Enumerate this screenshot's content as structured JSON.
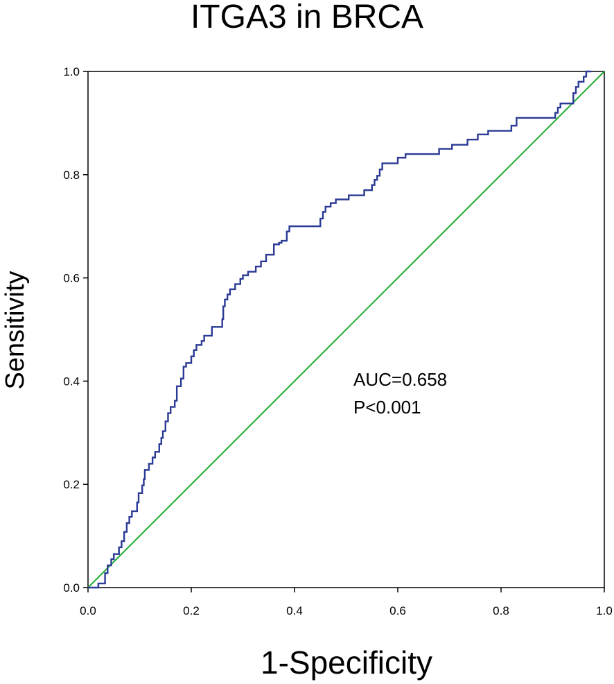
{
  "chart_data": {
    "type": "line",
    "title": "ITGA3 in BRCA",
    "xlabel": "1-Specificity",
    "ylabel": "Sensitivity",
    "xlim": [
      0,
      1
    ],
    "ylim": [
      0,
      1
    ],
    "x_ticks": [
      "0.0",
      "0.2",
      "0.4",
      "0.6",
      "0.8",
      "1.0"
    ],
    "y_ticks": [
      "0.0",
      "0.2",
      "0.4",
      "0.6",
      "0.8",
      "1.0"
    ],
    "grid": false,
    "annotations": [
      "AUC=0.658",
      "P<0.001"
    ],
    "colors": {
      "roc": "#2b3a94",
      "reference": "#22aa33"
    },
    "series": [
      {
        "points": [
          [
            0.0,
            0.0
          ],
          [
            0.02,
            0.0
          ],
          [
            0.02,
            0.008
          ],
          [
            0.033,
            0.008
          ],
          [
            0.033,
            0.028
          ],
          [
            0.038,
            0.028
          ],
          [
            0.038,
            0.043
          ],
          [
            0.045,
            0.043
          ],
          [
            0.045,
            0.055
          ],
          [
            0.05,
            0.055
          ],
          [
            0.05,
            0.065
          ],
          [
            0.06,
            0.065
          ],
          [
            0.06,
            0.078
          ],
          [
            0.065,
            0.078
          ],
          [
            0.065,
            0.09
          ],
          [
            0.07,
            0.09
          ],
          [
            0.07,
            0.108
          ],
          [
            0.075,
            0.108
          ],
          [
            0.075,
            0.125
          ],
          [
            0.08,
            0.125
          ],
          [
            0.08,
            0.137
          ],
          [
            0.085,
            0.137
          ],
          [
            0.085,
            0.148
          ],
          [
            0.095,
            0.148
          ],
          [
            0.095,
            0.165
          ],
          [
            0.098,
            0.165
          ],
          [
            0.098,
            0.183
          ],
          [
            0.105,
            0.183
          ],
          [
            0.105,
            0.198
          ],
          [
            0.108,
            0.198
          ],
          [
            0.108,
            0.21
          ],
          [
            0.11,
            0.21
          ],
          [
            0.11,
            0.228
          ],
          [
            0.118,
            0.228
          ],
          [
            0.118,
            0.24
          ],
          [
            0.125,
            0.24
          ],
          [
            0.125,
            0.252
          ],
          [
            0.13,
            0.252
          ],
          [
            0.13,
            0.263
          ],
          [
            0.138,
            0.263
          ],
          [
            0.138,
            0.278
          ],
          [
            0.142,
            0.278
          ],
          [
            0.142,
            0.29
          ],
          [
            0.145,
            0.29
          ],
          [
            0.145,
            0.303
          ],
          [
            0.15,
            0.303
          ],
          [
            0.15,
            0.322
          ],
          [
            0.155,
            0.322
          ],
          [
            0.155,
            0.338
          ],
          [
            0.16,
            0.338
          ],
          [
            0.16,
            0.35
          ],
          [
            0.168,
            0.35
          ],
          [
            0.168,
            0.362
          ],
          [
            0.172,
            0.362
          ],
          [
            0.172,
            0.39
          ],
          [
            0.18,
            0.39
          ],
          [
            0.18,
            0.405
          ],
          [
            0.185,
            0.405
          ],
          [
            0.185,
            0.428
          ],
          [
            0.19,
            0.428
          ],
          [
            0.19,
            0.435
          ],
          [
            0.2,
            0.435
          ],
          [
            0.2,
            0.448
          ],
          [
            0.205,
            0.448
          ],
          [
            0.205,
            0.46
          ],
          [
            0.21,
            0.46
          ],
          [
            0.21,
            0.47
          ],
          [
            0.22,
            0.47
          ],
          [
            0.22,
            0.478
          ],
          [
            0.225,
            0.478
          ],
          [
            0.225,
            0.488
          ],
          [
            0.24,
            0.488
          ],
          [
            0.24,
            0.505
          ],
          [
            0.26,
            0.505
          ],
          [
            0.26,
            0.52
          ],
          [
            0.262,
            0.52
          ],
          [
            0.262,
            0.545
          ],
          [
            0.265,
            0.545
          ],
          [
            0.265,
            0.558
          ],
          [
            0.27,
            0.558
          ],
          [
            0.27,
            0.568
          ],
          [
            0.275,
            0.568
          ],
          [
            0.275,
            0.578
          ],
          [
            0.285,
            0.578
          ],
          [
            0.285,
            0.588
          ],
          [
            0.295,
            0.588
          ],
          [
            0.295,
            0.598
          ],
          [
            0.3,
            0.598
          ],
          [
            0.3,
            0.605
          ],
          [
            0.31,
            0.605
          ],
          [
            0.31,
            0.612
          ],
          [
            0.325,
            0.612
          ],
          [
            0.325,
            0.622
          ],
          [
            0.335,
            0.622
          ],
          [
            0.335,
            0.632
          ],
          [
            0.345,
            0.632
          ],
          [
            0.345,
            0.645
          ],
          [
            0.36,
            0.645
          ],
          [
            0.36,
            0.665
          ],
          [
            0.37,
            0.665
          ],
          [
            0.37,
            0.668
          ],
          [
            0.375,
            0.668
          ],
          [
            0.375,
            0.672
          ],
          [
            0.385,
            0.672
          ],
          [
            0.385,
            0.69
          ],
          [
            0.39,
            0.69
          ],
          [
            0.39,
            0.7
          ],
          [
            0.4,
            0.7
          ],
          [
            0.45,
            0.7
          ],
          [
            0.45,
            0.715
          ],
          [
            0.455,
            0.715
          ],
          [
            0.455,
            0.728
          ],
          [
            0.46,
            0.728
          ],
          [
            0.46,
            0.738
          ],
          [
            0.47,
            0.738
          ],
          [
            0.47,
            0.745
          ],
          [
            0.48,
            0.745
          ],
          [
            0.48,
            0.752
          ],
          [
            0.505,
            0.752
          ],
          [
            0.505,
            0.76
          ],
          [
            0.535,
            0.76
          ],
          [
            0.535,
            0.77
          ],
          [
            0.55,
            0.77
          ],
          [
            0.55,
            0.78
          ],
          [
            0.555,
            0.78
          ],
          [
            0.555,
            0.79
          ],
          [
            0.56,
            0.79
          ],
          [
            0.56,
            0.798
          ],
          [
            0.565,
            0.798
          ],
          [
            0.565,
            0.81
          ],
          [
            0.57,
            0.81
          ],
          [
            0.57,
            0.822
          ],
          [
            0.6,
            0.822
          ],
          [
            0.6,
            0.833
          ],
          [
            0.615,
            0.833
          ],
          [
            0.615,
            0.84
          ],
          [
            0.68,
            0.84
          ],
          [
            0.68,
            0.85
          ],
          [
            0.705,
            0.85
          ],
          [
            0.705,
            0.858
          ],
          [
            0.735,
            0.858
          ],
          [
            0.735,
            0.868
          ],
          [
            0.755,
            0.868
          ],
          [
            0.755,
            0.878
          ],
          [
            0.775,
            0.878
          ],
          [
            0.775,
            0.885
          ],
          [
            0.82,
            0.885
          ],
          [
            0.82,
            0.895
          ],
          [
            0.83,
            0.895
          ],
          [
            0.83,
            0.91
          ],
          [
            0.905,
            0.91
          ],
          [
            0.905,
            0.92
          ],
          [
            0.91,
            0.92
          ],
          [
            0.91,
            0.93
          ],
          [
            0.915,
            0.93
          ],
          [
            0.915,
            0.938
          ],
          [
            0.94,
            0.938
          ],
          [
            0.94,
            0.958
          ],
          [
            0.945,
            0.958
          ],
          [
            0.945,
            0.97
          ],
          [
            0.95,
            0.97
          ],
          [
            0.95,
            0.98
          ],
          [
            0.96,
            0.98
          ],
          [
            0.96,
            0.99
          ],
          [
            0.965,
            0.99
          ],
          [
            0.965,
            1.0
          ],
          [
            0.975,
            1.0
          ]
        ]
      },
      {
        "points": [
          [
            0,
            0
          ],
          [
            1,
            1
          ]
        ]
      }
    ]
  }
}
